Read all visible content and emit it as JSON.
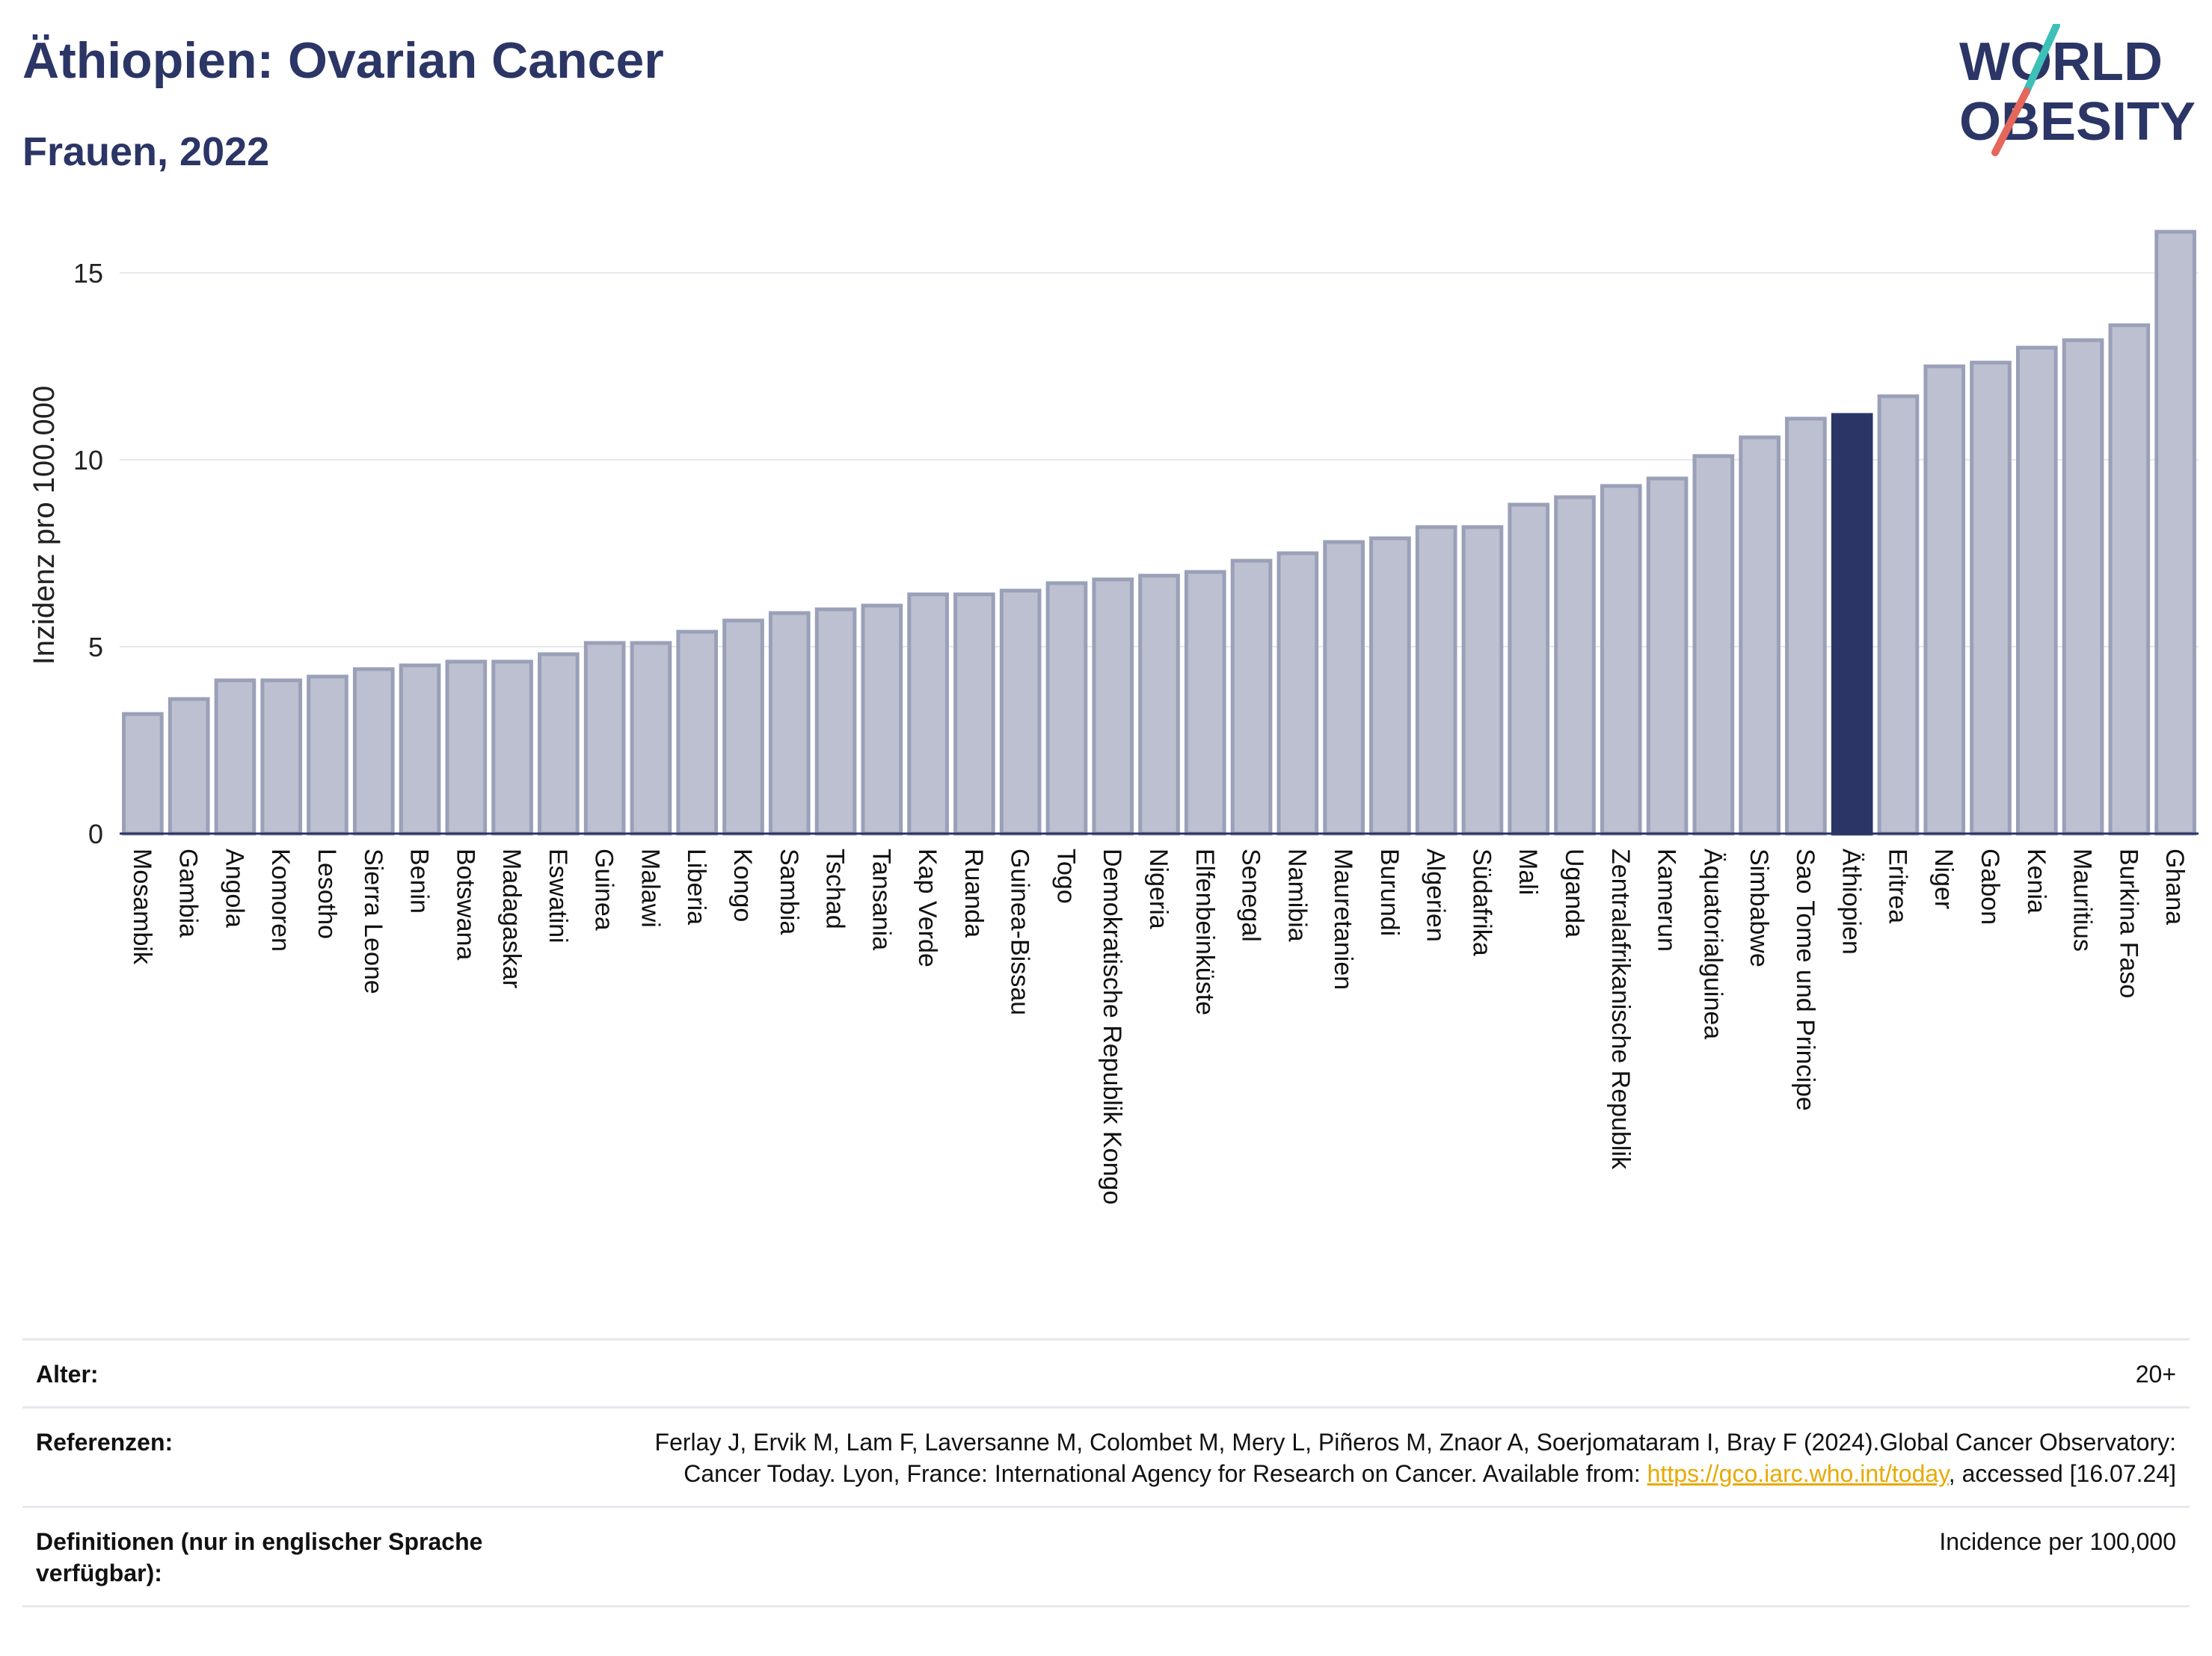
{
  "header": {
    "title": "Äthiopien: Ovarian Cancer",
    "subtitle": "Frauen, 2022"
  },
  "logo": {
    "line1": "WORLD",
    "line2": "OBESITY",
    "colors": {
      "text": "#2b3566",
      "slash_top": "#3cc0b8",
      "slash_bottom": "#e5675b"
    }
  },
  "chart_data": {
    "type": "bar",
    "ylabel": "Inzidenz pro 100.000",
    "xlabel": "",
    "ylim": [
      0,
      16.5
    ],
    "yticks": [
      0,
      5,
      10,
      15
    ],
    "grid": true,
    "highlight": "Äthiopien",
    "colors": {
      "bar": "#bcc0d0",
      "bar_edge": "#9aa0b8",
      "highlight": "#2b3566",
      "grid": "#e6e8ee"
    },
    "categories": [
      "Mosambik",
      "Gambia",
      "Angola",
      "Komoren",
      "Lesotho",
      "Sierra Leone",
      "Benin",
      "Botswana",
      "Madagaskar",
      "Eswatini",
      "Guinea",
      "Malawi",
      "Liberia",
      "Kongo",
      "Sambia",
      "Tschad",
      "Tansania",
      "Kap Verde",
      "Ruanda",
      "Guinea-Bissau",
      "Togo",
      "Demokratische Republik Kongo",
      "Nigeria",
      "Elfenbeinküste",
      "Senegal",
      "Namibia",
      "Mauretanien",
      "Burundi",
      "Algerien",
      "Südafrika",
      "Mali",
      "Uganda",
      "Zentralafrikanische Republik",
      "Kamerun",
      "Äquatorialguinea",
      "Simbabwe",
      "Sao Tome und Principe",
      "Äthiopien",
      "Eritrea",
      "Niger",
      "Gabon",
      "Kenia",
      "Mauritius",
      "Burkina Faso",
      "Ghana"
    ],
    "values": [
      3.2,
      3.6,
      4.1,
      4.1,
      4.2,
      4.4,
      4.5,
      4.6,
      4.6,
      4.8,
      5.1,
      5.1,
      5.4,
      5.7,
      5.9,
      6.0,
      6.1,
      6.4,
      6.4,
      6.5,
      6.7,
      6.8,
      6.9,
      7.0,
      7.3,
      7.5,
      7.8,
      7.9,
      8.2,
      8.2,
      8.8,
      9.0,
      9.3,
      9.5,
      10.1,
      10.6,
      11.1,
      11.2,
      11.7,
      12.5,
      12.6,
      13.0,
      13.2,
      13.6,
      16.1
    ]
  },
  "info": {
    "age_label": "Alter:",
    "age_value": "20+",
    "ref_label": "Referenzen:",
    "ref_text_1": "Ferlay J, Ervik M, Lam F, Laversanne M, Colombet M, Mery L, Piñeros M, Znaor A, Soerjomataram I, Bray F (2024).Global Cancer Observatory: Cancer Today. Lyon, France: International Agency for Research on Cancer. Available from: ",
    "ref_link": "https://gco.iarc.who.int/today",
    "ref_text_2": ", accessed [16.07.24]",
    "def_label": "Definitionen (nur in englischer Sprache verfügbar):",
    "def_value": "Incidence per 100,000"
  }
}
